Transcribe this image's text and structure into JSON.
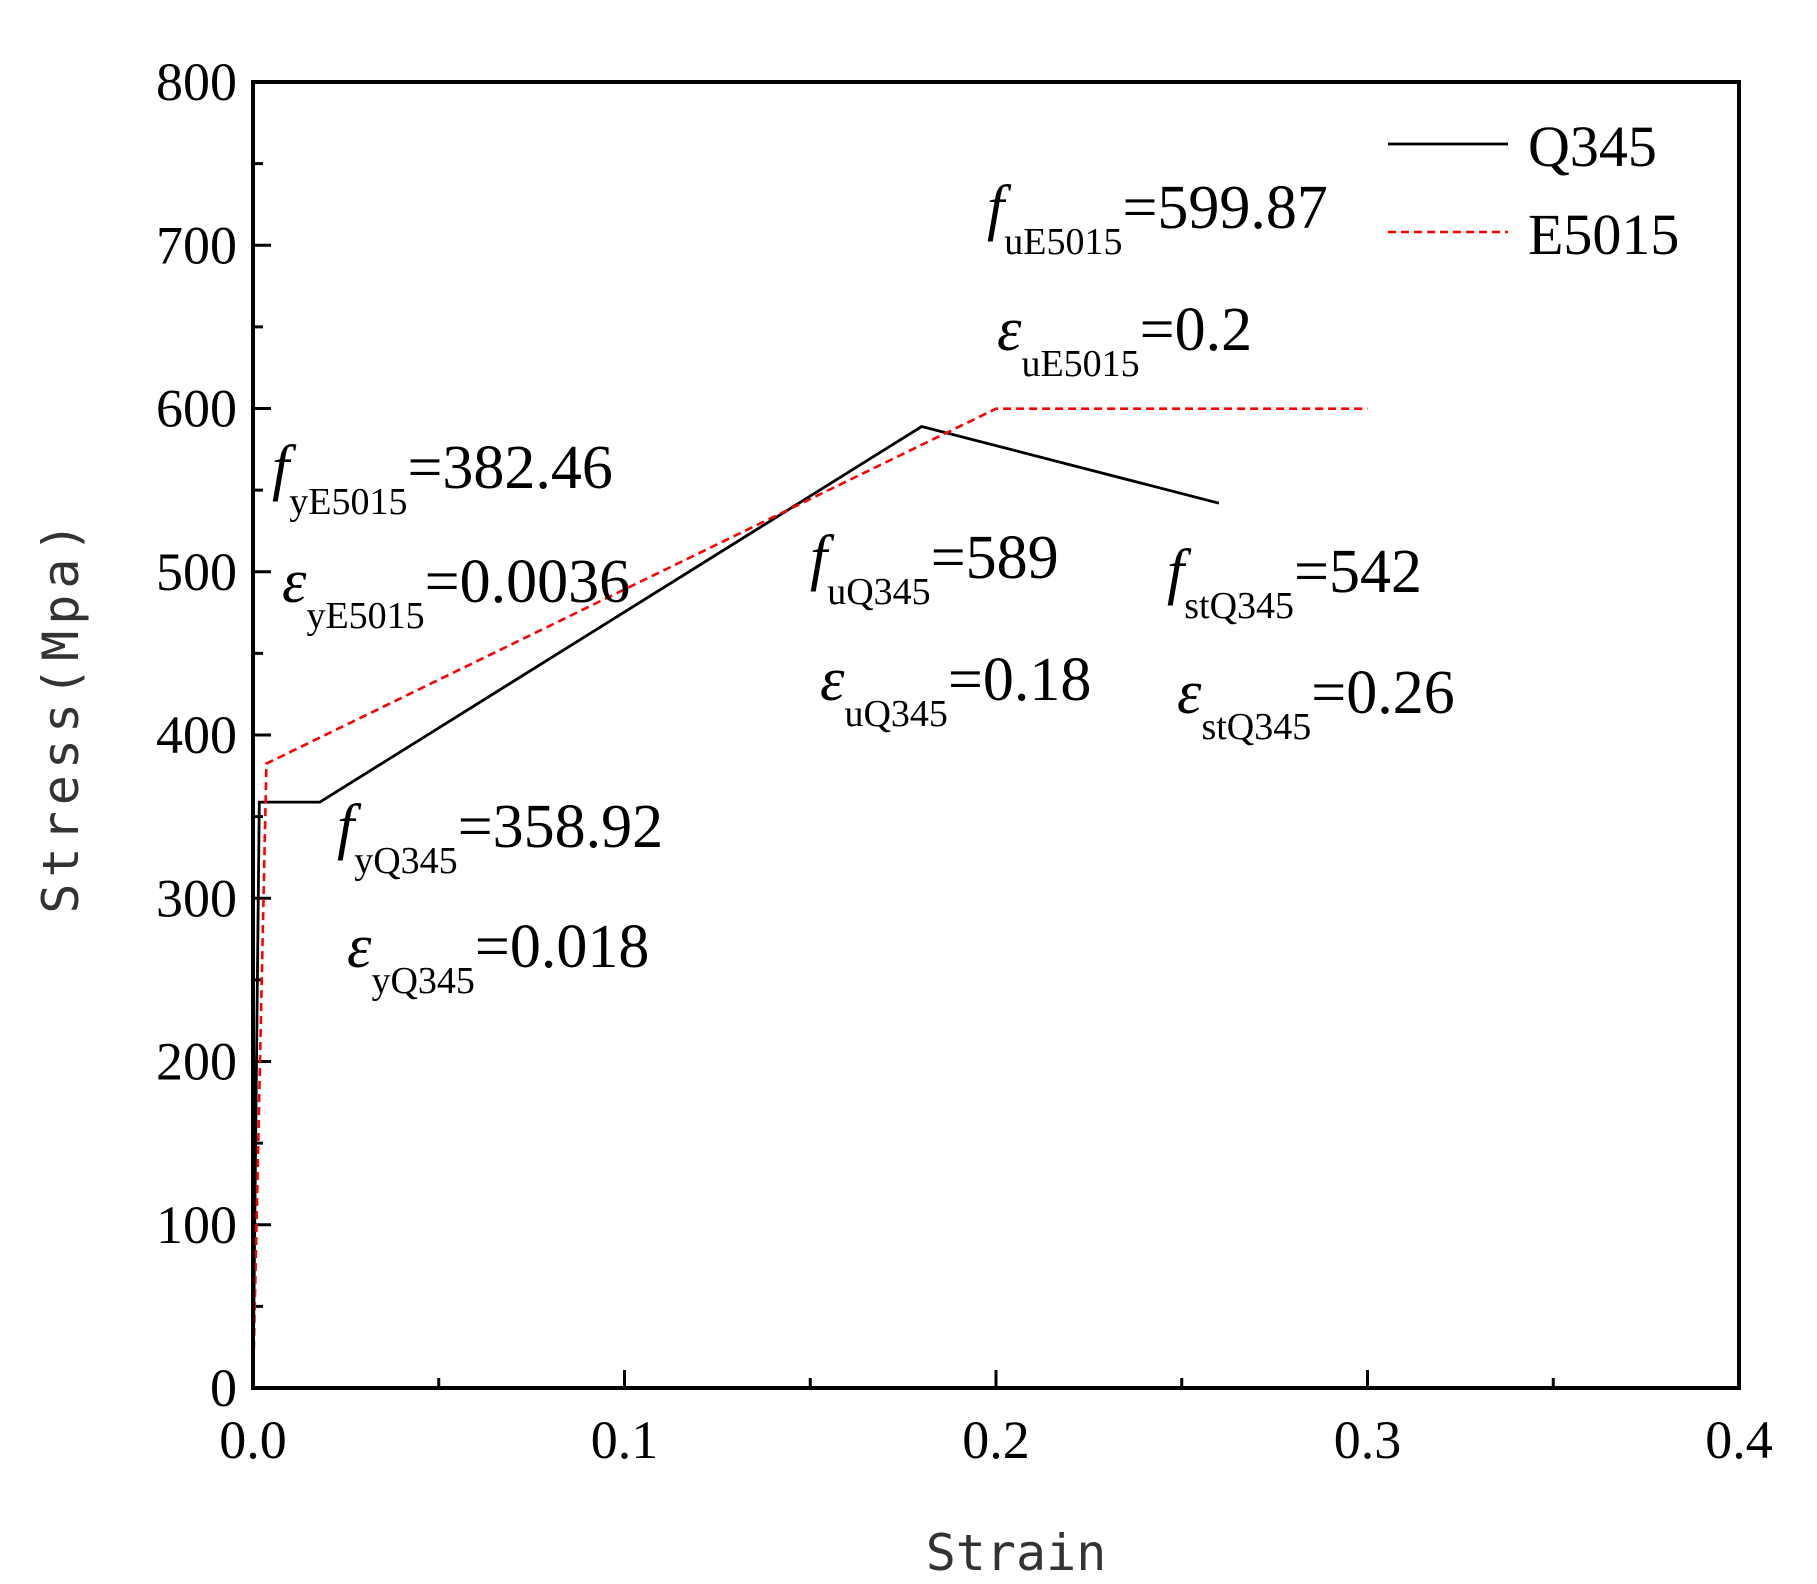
{
  "chart_data": {
    "type": "line",
    "xlabel": "Strain",
    "ylabel": "Stress(Mpa)",
    "xlim": [
      0,
      0.4
    ],
    "ylim": [
      0,
      800
    ],
    "xticks": [
      "0.0",
      "0.1",
      "0.2",
      "0.3",
      "0.4"
    ],
    "yticks": [
      "0",
      "100",
      "200",
      "300",
      "400",
      "500",
      "600",
      "700",
      "800"
    ],
    "grid": false,
    "legend_position": "top-right",
    "series": [
      {
        "name": "Q345",
        "color": "#000000",
        "style": "solid",
        "points": [
          [
            0,
            0
          ],
          [
            0.0017,
            358.92
          ],
          [
            0.018,
            358.92
          ],
          [
            0.18,
            589
          ],
          [
            0.26,
            542
          ]
        ]
      },
      {
        "name": "E5015",
        "color": "#ff0000",
        "style": "dashed",
        "points": [
          [
            0,
            0
          ],
          [
            0.0036,
            382.46
          ],
          [
            0.2,
            599.87
          ],
          [
            0.3,
            599.87
          ]
        ]
      }
    ],
    "annotations": [
      {
        "sym": "f",
        "sub": "yE5015",
        "val": "=382.46"
      },
      {
        "sym": "ε",
        "sub": "yE5015",
        "val": "=0.0036"
      },
      {
        "sym": "f",
        "sub": "yQ345",
        "val": "=358.92"
      },
      {
        "sym": "ε",
        "sub": "yQ345",
        "val": "=0.018"
      },
      {
        "sym": "f",
        "sub": "uE5015",
        "val": "=599.87"
      },
      {
        "sym": "ε",
        "sub": "uE5015",
        "val": "=0.2"
      },
      {
        "sym": "f",
        "sub": "uQ345",
        "val": "=589"
      },
      {
        "sym": "ε",
        "sub": "uQ345",
        "val": "=0.18"
      },
      {
        "sym": "f",
        "sub": "stQ345",
        "val": "=542"
      },
      {
        "sym": "ε",
        "sub": "stQ345",
        "val": "=0.26"
      }
    ]
  }
}
